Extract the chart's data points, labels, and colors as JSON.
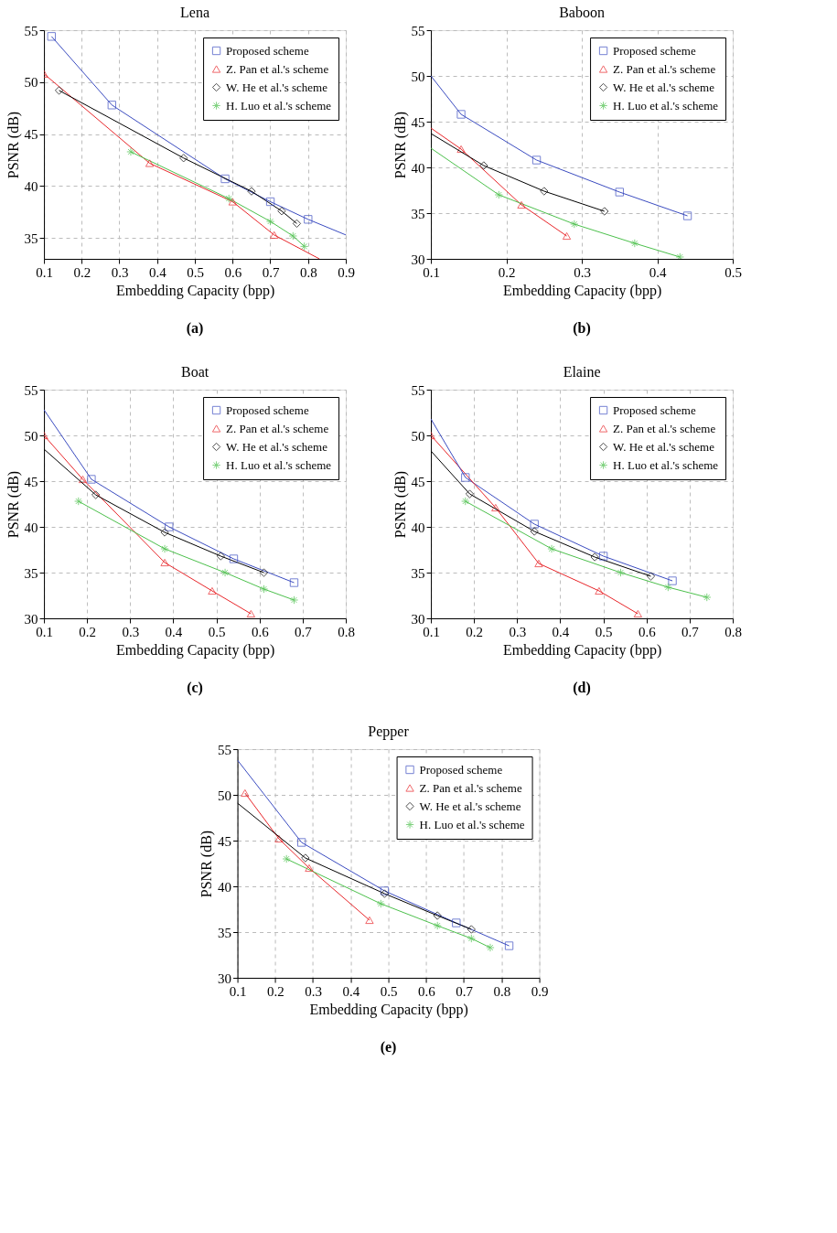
{
  "chart_data": [
    {
      "type": "line",
      "title": "Lena",
      "xlabel": "Embedding Capacity (bpp)",
      "ylabel": "PSNR (dB)",
      "annotations": [
        "(a)"
      ],
      "xlim": [
        0.1,
        0.9
      ],
      "xticks": [
        0.1,
        0.2,
        0.3,
        0.4,
        0.5,
        0.6,
        0.7,
        0.8,
        0.9
      ],
      "ylim": [
        33,
        55
      ],
      "yticks": [
        35,
        40,
        45,
        50,
        55
      ],
      "grid": true,
      "legend": "top right",
      "line_style": "solid",
      "series": [
        {
          "name": "Proposed scheme",
          "color": "#3b4cc0",
          "marker": "square",
          "x": [
            0.12,
            0.28,
            0.58,
            0.7,
            0.8
          ],
          "values": [
            54.4,
            47.8,
            40.7,
            38.5,
            36.8
          ]
        },
        {
          "name": "Z. Pan et al.'s scheme",
          "color": "#e8262a",
          "marker": "triangle",
          "x": [
            0.1,
            0.38,
            0.6,
            0.71
          ],
          "values": [
            50.8,
            42.2,
            38.5,
            35.3
          ]
        },
        {
          "name": "W. He et al.'s scheme",
          "color": "#000000",
          "marker": "diamond",
          "x": [
            0.14,
            0.47,
            0.65,
            0.73,
            0.77
          ],
          "values": [
            49.2,
            42.7,
            39.5,
            37.6,
            36.4
          ]
        },
        {
          "name": "H. Luo et al.'s scheme",
          "color": "#4cc04c",
          "marker": "cross",
          "x": [
            0.33,
            0.59,
            0.7,
            0.76,
            0.79
          ],
          "values": [
            43.3,
            38.8,
            36.6,
            35.2,
            34.2
          ]
        },
        {
          "color": "#3b4cc0",
          "marker": "none",
          "x": [
            0.8,
            0.9
          ],
          "values": [
            36.8,
            35.3
          ]
        },
        {
          "color": "#e8262a",
          "marker": "none",
          "x": [
            0.71,
            0.83
          ],
          "values": [
            35.3,
            33.0
          ]
        }
      ]
    },
    {
      "type": "line",
      "title": "Baboon",
      "xlabel": "Embedding Capacity (bpp)",
      "ylabel": "PSNR (dB)",
      "annotations": [
        "(b)"
      ],
      "xlim": [
        0.1,
        0.5
      ],
      "xticks": [
        0.1,
        0.2,
        0.3,
        0.4,
        0.5
      ],
      "ylim": [
        30,
        55
      ],
      "yticks": [
        30,
        35,
        40,
        45,
        50,
        55
      ],
      "grid": true,
      "legend": "top right",
      "line_style": "solid",
      "series": [
        {
          "name": "Proposed scheme",
          "color": "#3b4cc0",
          "marker": "square",
          "x": [
            0.14,
            0.24,
            0.35,
            0.44
          ],
          "values": [
            45.8,
            40.8,
            37.3,
            34.7
          ]
        },
        {
          "name": "Z. Pan et al.'s scheme",
          "color": "#e8262a",
          "marker": "triangle",
          "x": [
            0.14,
            0.22,
            0.28
          ],
          "values": [
            42.0,
            35.9,
            32.5
          ]
        },
        {
          "name": "W. He et al.'s scheme",
          "color": "#000000",
          "marker": "diamond",
          "x": [
            0.17,
            0.25,
            0.33
          ],
          "values": [
            40.2,
            37.4,
            35.2
          ]
        },
        {
          "name": "H. Luo et al.'s scheme",
          "color": "#4cc04c",
          "marker": "cross",
          "x": [
            0.19,
            0.29,
            0.37,
            0.43
          ],
          "values": [
            37.0,
            33.8,
            31.7,
            30.2
          ]
        },
        {
          "color": "#3b4cc0",
          "marker": "none",
          "x": [
            0.1,
            0.14
          ],
          "values": [
            50.0,
            45.8
          ]
        },
        {
          "color": "#e8262a",
          "marker": "none",
          "x": [
            0.1,
            0.14
          ],
          "values": [
            44.3,
            42.0
          ]
        },
        {
          "color": "#000000",
          "marker": "none",
          "x": [
            0.1,
            0.17
          ],
          "values": [
            43.7,
            40.2
          ]
        },
        {
          "color": "#4cc04c",
          "marker": "none",
          "x": [
            0.1,
            0.19
          ],
          "values": [
            42.1,
            37.0
          ]
        }
      ]
    },
    {
      "type": "line",
      "title": "Boat",
      "xlabel": "Embedding Capacity (bpp)",
      "ylabel": "PSNR (dB)",
      "annotations": [
        "(c)"
      ],
      "xlim": [
        0.1,
        0.8
      ],
      "xticks": [
        0.1,
        0.2,
        0.3,
        0.4,
        0.5,
        0.6,
        0.7,
        0.8
      ],
      "ylim": [
        30,
        55
      ],
      "yticks": [
        30,
        35,
        40,
        45,
        50,
        55
      ],
      "grid": true,
      "legend": "top right",
      "line_style": "solid",
      "series": [
        {
          "name": "Proposed scheme",
          "color": "#3b4cc0",
          "marker": "square",
          "x": [
            0.21,
            0.39,
            0.54,
            0.68
          ],
          "values": [
            45.2,
            40.0,
            36.5,
            33.9
          ]
        },
        {
          "name": "Z. Pan et al.'s scheme",
          "color": "#e8262a",
          "marker": "triangle",
          "x": [
            0.1,
            0.19,
            0.38,
            0.49,
            0.58
          ],
          "values": [
            50.0,
            45.2,
            36.1,
            33.0,
            30.5
          ]
        },
        {
          "name": "W. He et al.'s scheme",
          "color": "#000000",
          "marker": "diamond",
          "x": [
            0.22,
            0.38,
            0.51,
            0.61
          ],
          "values": [
            43.5,
            39.4,
            36.8,
            35.0
          ]
        },
        {
          "name": "H. Luo et al.'s scheme",
          "color": "#4cc04c",
          "marker": "cross",
          "x": [
            0.18,
            0.38,
            0.52,
            0.61,
            0.68
          ],
          "values": [
            42.8,
            37.6,
            35.0,
            33.2,
            32.0
          ]
        },
        {
          "color": "#3b4cc0",
          "marker": "none",
          "x": [
            0.1,
            0.21
          ],
          "values": [
            52.8,
            45.2
          ]
        },
        {
          "color": "#000000",
          "marker": "none",
          "x": [
            0.1,
            0.22
          ],
          "values": [
            48.5,
            43.5
          ]
        }
      ]
    },
    {
      "type": "line",
      "title": "Elaine",
      "xlabel": "Embedding Capacity (bpp)",
      "ylabel": "PSNR (dB)",
      "annotations": [
        "(d)"
      ],
      "xlim": [
        0.1,
        0.8
      ],
      "xticks": [
        0.1,
        0.2,
        0.3,
        0.4,
        0.5,
        0.6,
        0.7,
        0.8
      ],
      "ylim": [
        30,
        55
      ],
      "yticks": [
        30,
        35,
        40,
        45,
        50,
        55
      ],
      "grid": true,
      "legend": "top right",
      "line_style": "solid",
      "series": [
        {
          "name": "Proposed scheme",
          "color": "#3b4cc0",
          "marker": "square",
          "x": [
            0.18,
            0.34,
            0.5,
            0.66
          ],
          "values": [
            45.4,
            40.3,
            36.8,
            34.1
          ]
        },
        {
          "name": "Z. Pan et al.'s scheme",
          "color": "#e8262a",
          "marker": "triangle",
          "x": [
            0.1,
            0.25,
            0.35,
            0.49,
            0.58
          ],
          "values": [
            50.0,
            42.1,
            36.0,
            33.0,
            30.5
          ]
        },
        {
          "name": "W. He et al.'s scheme",
          "color": "#000000",
          "marker": "diamond",
          "x": [
            0.19,
            0.34,
            0.48,
            0.61
          ],
          "values": [
            43.6,
            39.5,
            36.7,
            34.6
          ]
        },
        {
          "name": "H. Luo et al.'s scheme",
          "color": "#4cc04c",
          "marker": "cross",
          "x": [
            0.18,
            0.38,
            0.54,
            0.65,
            0.74
          ],
          "values": [
            42.8,
            37.6,
            35.0,
            33.4,
            32.3
          ]
        },
        {
          "color": "#3b4cc0",
          "marker": "none",
          "x": [
            0.1,
            0.18
          ],
          "values": [
            51.8,
            45.4
          ]
        },
        {
          "color": "#000000",
          "marker": "none",
          "x": [
            0.1,
            0.19
          ],
          "values": [
            48.3,
            43.6
          ]
        }
      ]
    },
    {
      "type": "line",
      "title": "Pepper",
      "xlabel": "Embedding Capacity (bpp)",
      "ylabel": "PSNR (dB)",
      "annotations": [
        "(e)"
      ],
      "xlim": [
        0.1,
        0.9
      ],
      "xticks": [
        0.1,
        0.2,
        0.3,
        0.4,
        0.5,
        0.6,
        0.7,
        0.8,
        0.9
      ],
      "ylim": [
        30,
        55
      ],
      "yticks": [
        30,
        35,
        40,
        45,
        50,
        55
      ],
      "grid": true,
      "legend": "top right",
      "line_style": "solid",
      "series": [
        {
          "name": "Proposed scheme",
          "color": "#3b4cc0",
          "marker": "square",
          "x": [
            0.27,
            0.49,
            0.68,
            0.82
          ],
          "values": [
            44.8,
            39.5,
            36.0,
            33.5
          ]
        },
        {
          "name": "Z. Pan et al.'s scheme",
          "color": "#e8262a",
          "marker": "triangle",
          "x": [
            0.12,
            0.21,
            0.29,
            0.45
          ],
          "values": [
            50.2,
            45.2,
            42.0,
            36.3
          ]
        },
        {
          "name": "W. He et al.'s scheme",
          "color": "#000000",
          "marker": "diamond",
          "x": [
            0.28,
            0.49,
            0.63,
            0.72
          ],
          "values": [
            43.1,
            39.2,
            36.8,
            35.3
          ]
        },
        {
          "name": "H. Luo et al.'s scheme",
          "color": "#4cc04c",
          "marker": "cross",
          "x": [
            0.23,
            0.48,
            0.63,
            0.72,
            0.77
          ],
          "values": [
            43.0,
            38.1,
            35.7,
            34.3,
            33.3
          ]
        },
        {
          "color": "#3b4cc0",
          "marker": "none",
          "x": [
            0.1,
            0.27
          ],
          "values": [
            53.8,
            44.8
          ]
        },
        {
          "color": "#000000",
          "marker": "none",
          "x": [
            0.1,
            0.28
          ],
          "values": [
            49.1,
            43.1
          ]
        }
      ]
    }
  ]
}
